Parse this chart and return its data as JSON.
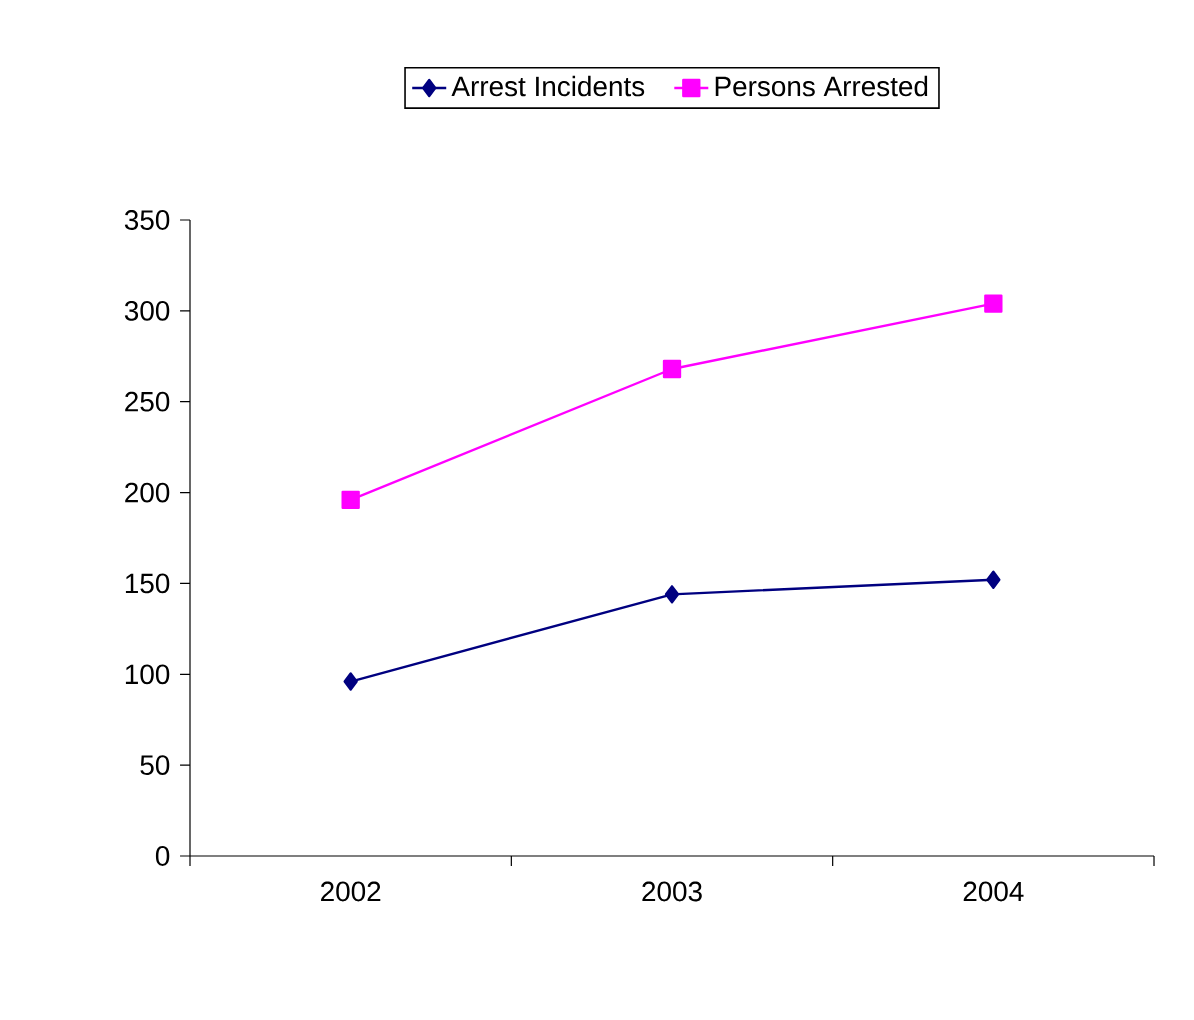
{
  "chart_data": {
    "type": "line",
    "categories": [
      "2002",
      "2003",
      "2004"
    ],
    "series": [
      {
        "name": "Arrest Incidents",
        "color": "#000080",
        "marker": "diamond",
        "values": [
          96,
          144,
          152
        ]
      },
      {
        "name": "Persons Arrested",
        "color": "#ff00ff",
        "marker": "square",
        "values": [
          196,
          268,
          304
        ]
      }
    ],
    "ylim": [
      0,
      350
    ],
    "yticks": [
      0,
      50,
      100,
      150,
      200,
      250,
      300,
      350
    ],
    "grid": false,
    "legend": "top",
    "line_style": "solid"
  }
}
